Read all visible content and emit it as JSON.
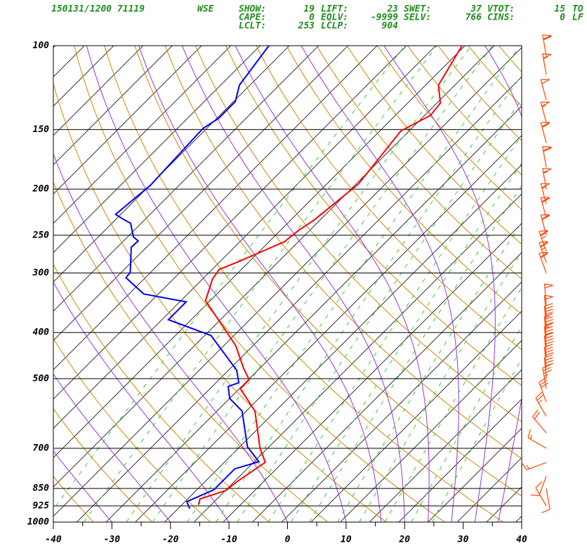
{
  "chart_data": {
    "type": "skewt",
    "header": {
      "station": [
        "150131/1200 71119",
        "WSE"
      ],
      "rows": [
        [
          {
            "label": "SHOW:",
            "value": 19
          },
          {
            "label": "LIFT:",
            "value": 23
          },
          {
            "label": "SWET:",
            "value": 37
          },
          {
            "label": "VTOT:",
            "value": 15
          },
          {
            "label": "TO"
          }
        ],
        [
          {
            "label": "CAPE:",
            "value": 0
          },
          {
            "label": "EQLV:",
            "value": -9999
          },
          {
            "label": "SELV:",
            "value": 766
          },
          {
            "label": "CINS:",
            "value": 0
          },
          {
            "label": "LF"
          }
        ],
        [
          {
            "label": "LCLT:",
            "value": 253
          },
          {
            "label": "LCLP:",
            "value": 904
          }
        ]
      ]
    },
    "xlim": [
      -40,
      40
    ],
    "xticks": [
      -40,
      -30,
      -20,
      -10,
      0,
      10,
      20,
      30,
      40
    ],
    "ylim": [
      1000,
      100
    ],
    "yticks": [
      100,
      150,
      200,
      250,
      300,
      400,
      500,
      700,
      850,
      925,
      1000
    ],
    "log_scale_y": true,
    "series": [
      {
        "color": "#ff0000",
        "pressure": [
          919,
          894,
          858,
          821,
          749,
          700,
          585,
          525,
          502,
          477,
          426,
          343,
          309,
          295,
          284,
          258,
          244,
          232,
          195,
          151,
          140,
          132,
          121,
          100
        ],
        "values": [
          -18.2,
          -18.9,
          -15.9,
          -15.5,
          -14.0,
          -17.3,
          -24.5,
          -30.8,
          -30.9,
          -33.6,
          -39.0,
          -51.8,
          -54.3,
          -54.8,
          -52.8,
          -48.4,
          -47.9,
          -47.0,
          -45.6,
          -47.4,
          -45.0,
          -45.4,
          -48.8,
          -51.5
        ]
      },
      {
        "color": "#0000ff",
        "pressure": [
          937,
          906,
          855,
          773,
          747,
          695,
          585,
          550,
          519,
          510,
          480,
          406,
          401,
          376,
          345,
          332,
          307,
          299,
          265,
          257,
          252,
          236,
          232,
          226,
          196,
          151,
          149,
          142,
          131,
          121,
          100
        ],
        "values": [
          -19.0,
          -20.7,
          -18.1,
          -18.1,
          -15.2,
          -19.7,
          -26.7,
          -31.0,
          -33.3,
          -32.1,
          -34.6,
          -44.9,
          -46.5,
          -54.9,
          -54.9,
          -63.5,
          -69.3,
          -69.5,
          -73.6,
          -73.5,
          -75.0,
          -77.8,
          -79.5,
          -81.9,
          -80.9,
          -81.6,
          -81.6,
          -80.7,
          -80.7,
          -82.8,
          -84.5
        ]
      }
    ],
    "winds": {
      "color": "#ff4400",
      "pressure": [
        105,
        115,
        130,
        145,
        160,
        180,
        200,
        215,
        230,
        250,
        270,
        285,
        300,
        350,
        370,
        390,
        410,
        430,
        450,
        475,
        500,
        525,
        560,
        600,
        650,
        700,
        750,
        800,
        850,
        925
      ],
      "direction": [
        350,
        350,
        345,
        345,
        345,
        350,
        350,
        345,
        345,
        345,
        340,
        340,
        340,
        355,
        355,
        355,
        355,
        355,
        355,
        355,
        355,
        350,
        340,
        330,
        320,
        300,
        250,
        200,
        170,
        330
      ],
      "speed": [
        60,
        55,
        50,
        55,
        60,
        60,
        55,
        55,
        60,
        60,
        65,
        65,
        60,
        50,
        50,
        45,
        45,
        40,
        40,
        40,
        40,
        35,
        30,
        25,
        20,
        15,
        15,
        10,
        10,
        10
      ]
    }
  }
}
